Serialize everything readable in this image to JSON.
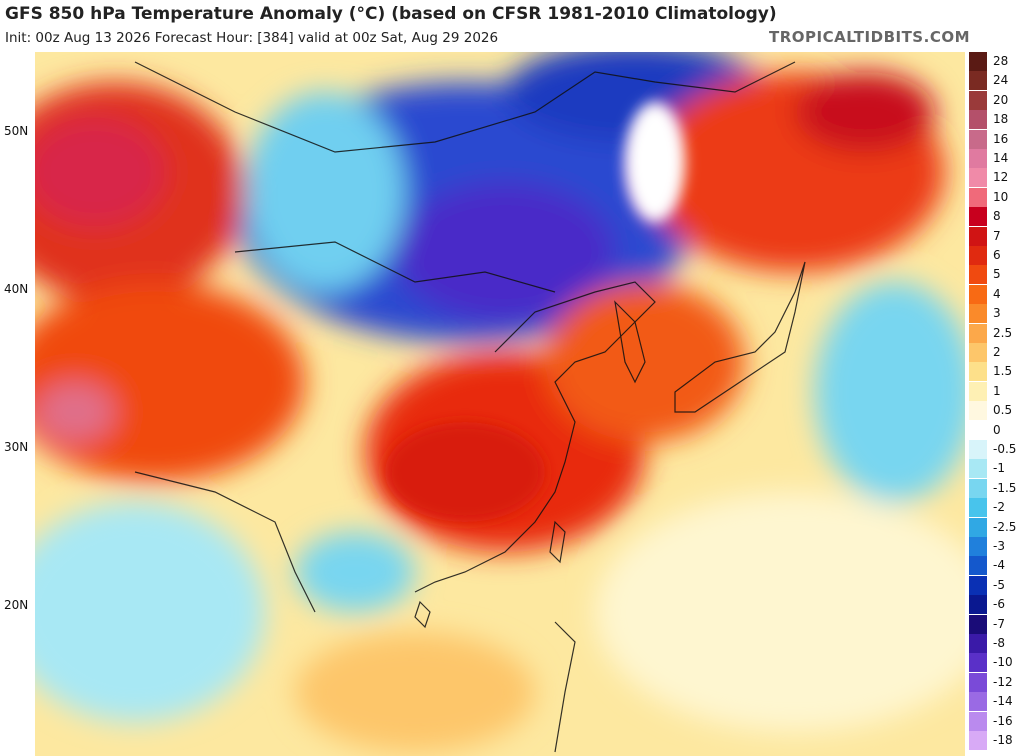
{
  "header": {
    "title": "GFS 850 hPa Temperature Anomaly (°C) (based on CFSR 1981-2010 Climatology)",
    "subtitle": "Init: 00z Aug 13 2026   Forecast Hour: [384]   valid at 00z Sat, Aug 29 2026",
    "source": "TROPICALTIDBITS.COM"
  },
  "map": {
    "lat_labels": [
      "50N",
      "40N",
      "30N",
      "20N"
    ]
  },
  "colorbar": {
    "labels": [
      "28",
      "24",
      "20",
      "18",
      "16",
      "14",
      "12",
      "10",
      "8",
      "7",
      "6",
      "5",
      "4",
      "3",
      "2.5",
      "2",
      "1.5",
      "1",
      "0.5",
      "0",
      "-0.5",
      "-1",
      "-1.5",
      "-2",
      "-2.5",
      "-3",
      "-4",
      "-5",
      "-6",
      "-7",
      "-8",
      "-10",
      "-12",
      "-14",
      "-16",
      "-18"
    ],
    "colors": [
      "#5a1a14",
      "#7a2a22",
      "#9a3a3a",
      "#b4506a",
      "#c86a8a",
      "#e07aa0",
      "#f08aa8",
      "#f06a7a",
      "#c8001e",
      "#d01414",
      "#e02a10",
      "#f04a10",
      "#f86a14",
      "#fa8a2a",
      "#fca84a",
      "#fdc66a",
      "#fde08a",
      "#fef0b4",
      "#fff8e0",
      "#ffffff",
      "#d8f4fa",
      "#a8e8f4",
      "#78d6f0",
      "#48c4ec",
      "#30a8e4",
      "#2080dc",
      "#1458cc",
      "#0a30b4",
      "#0a1890",
      "#1a0c78",
      "#3a1aa8",
      "#5a30c8",
      "#7a4ad8",
      "#9a6ae4",
      "#ba8aee",
      "#d8aaf6"
    ]
  }
}
